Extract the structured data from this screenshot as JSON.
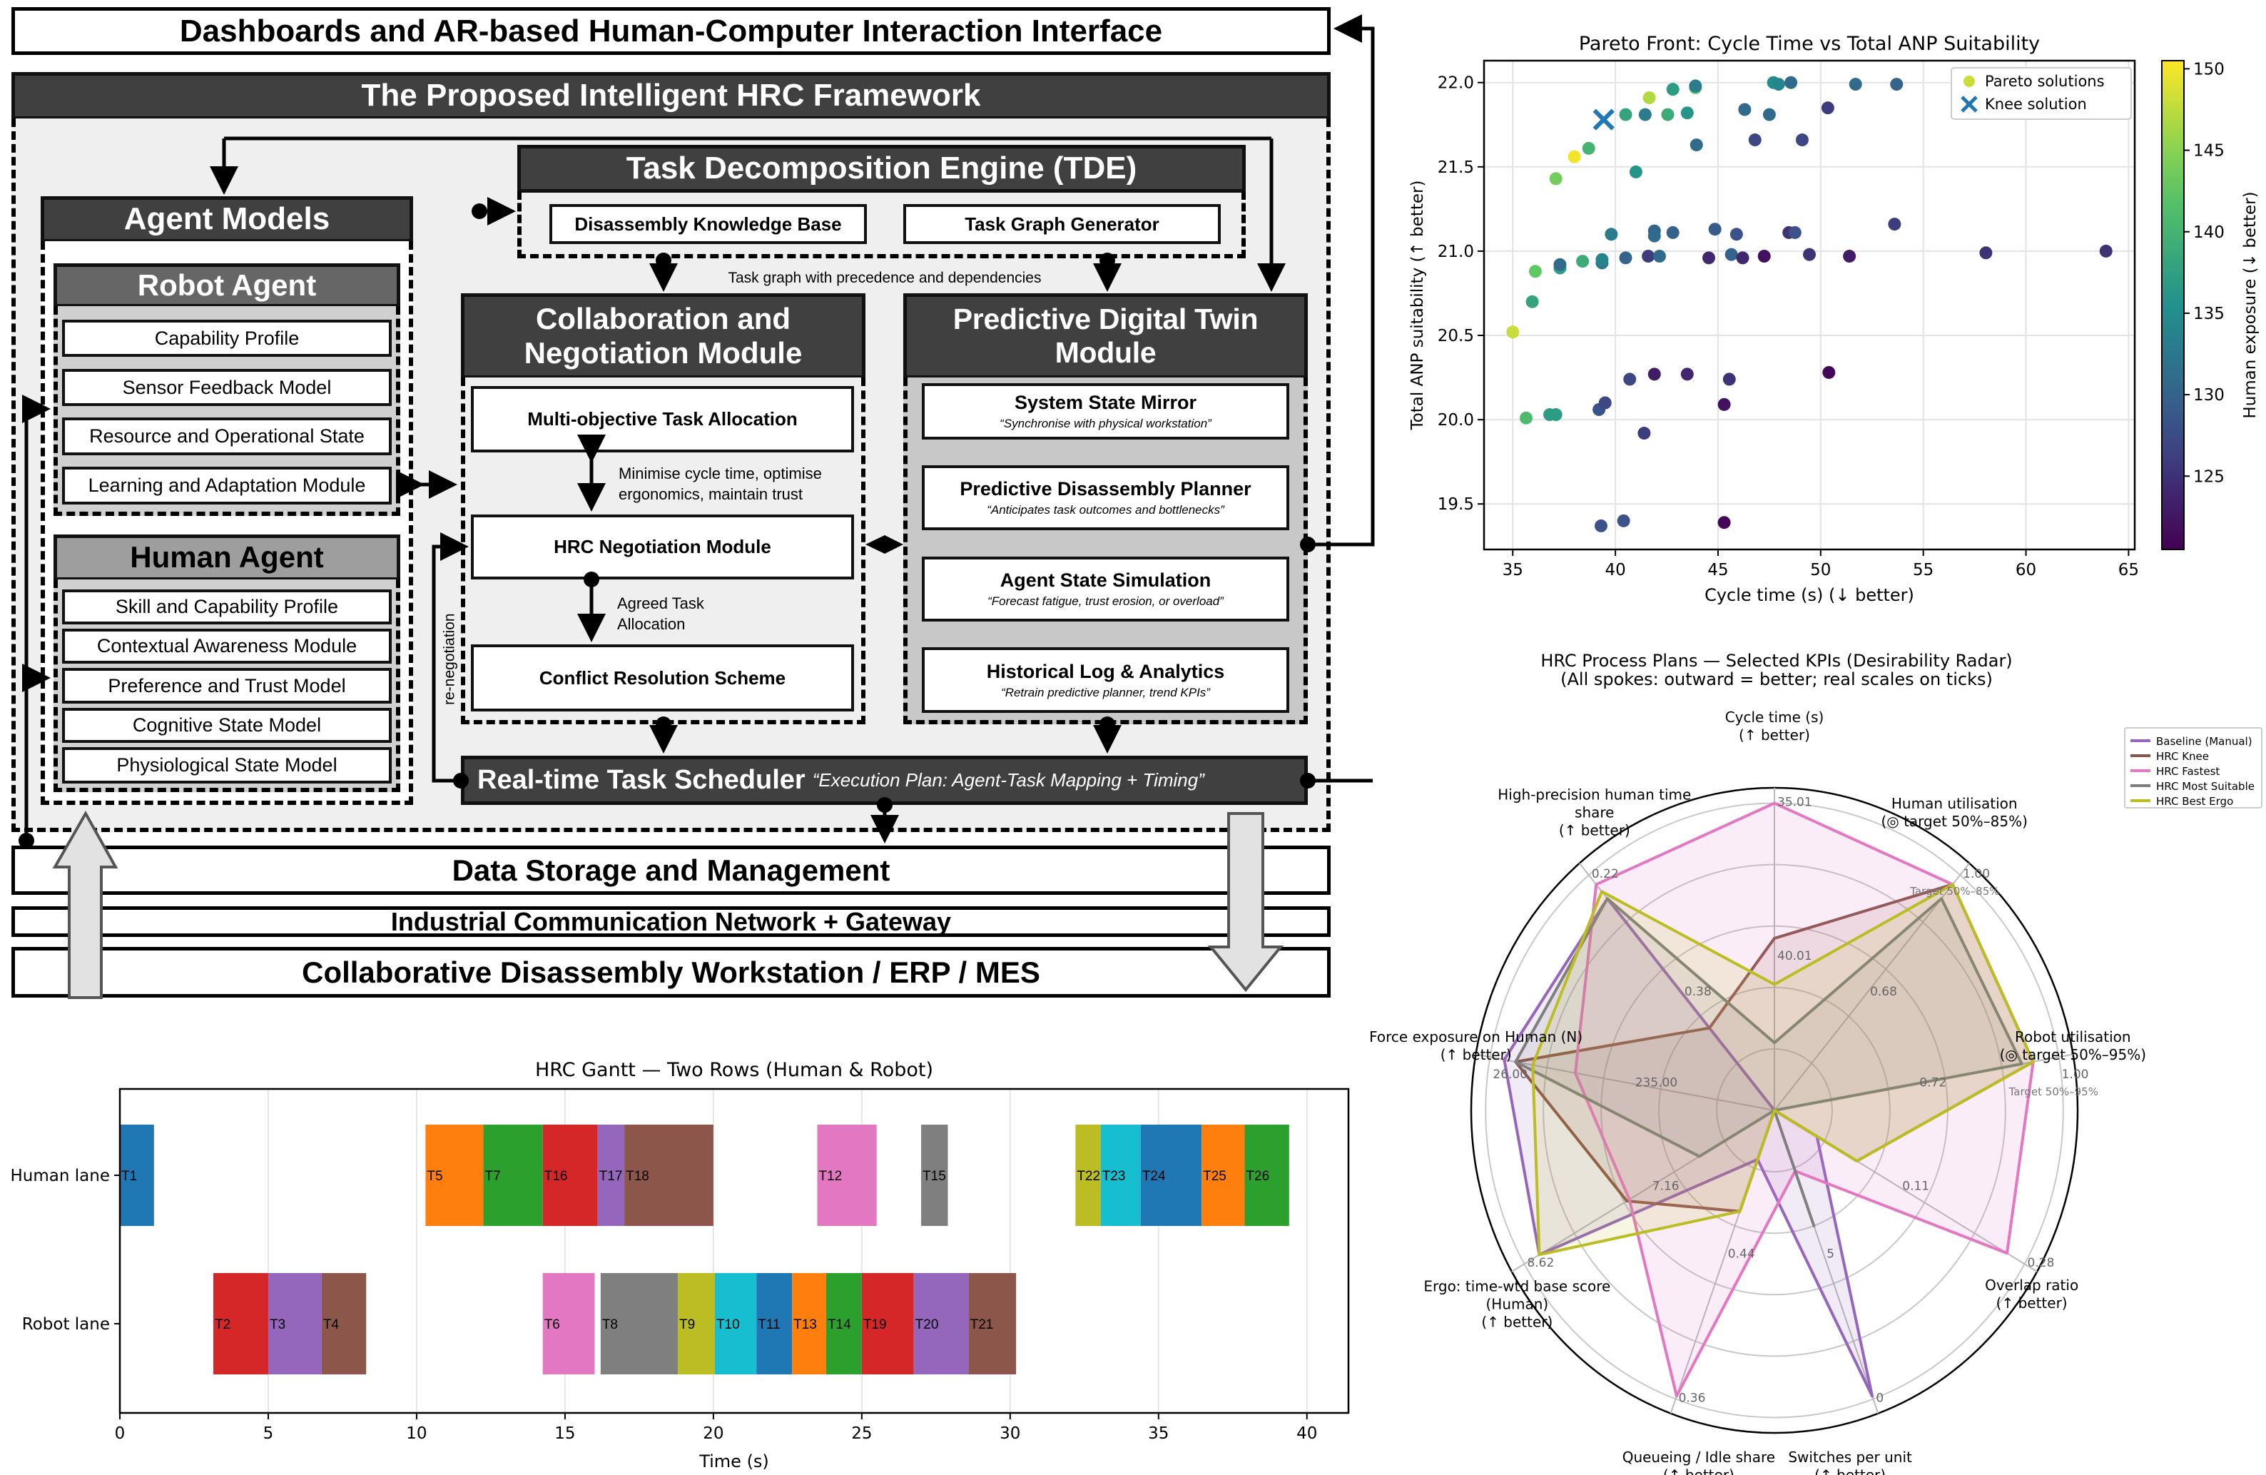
{
  "diagram": {
    "top_bar": "Dashboards and AR-based Human-Computer Interaction Interface",
    "framework_title": "The Proposed Intelligent HRC Framework",
    "tde": {
      "title": "Task Decomposition Engine (TDE)",
      "items": [
        "Disassembly Knowledge Base",
        "Task Graph Generator"
      ]
    },
    "task_graph_note": "Task graph with precedence and dependencies",
    "agent_models": {
      "title": "Agent Models",
      "robot": {
        "title": "Robot Agent",
        "items": [
          "Capability Profile",
          "Sensor Feedback Model",
          "Resource and Operational State",
          "Learning and Adaptation Module"
        ]
      },
      "human": {
        "title": "Human Agent",
        "items": [
          "Skill and Capability Profile",
          "Contextual Awareness Module",
          "Preference and Trust Model",
          "Cognitive State Model",
          "Physiological State Model"
        ]
      }
    },
    "collab": {
      "title_line1": "Collaboration and",
      "title_line2": "Negotiation Module",
      "items": [
        "Multi-objective Task Allocation",
        "HRC Negotiation Module",
        "Conflict Resolution Scheme"
      ],
      "note1_line1": "Minimise cycle time, optimise",
      "note1_line2": "ergonomics, maintain trust",
      "note2_line1": "Agreed Task",
      "note2_line2": "Allocation"
    },
    "renegotiation": "re-negotiation",
    "pdt": {
      "title_line1": "Predictive Digital Twin",
      "title_line2": "Module",
      "items": [
        {
          "title": "System State Mirror",
          "quote": "“Synchronise with physical workstation”"
        },
        {
          "title": "Predictive Disassembly Planner",
          "quote": "“Anticipates task outcomes and bottlenecks”"
        },
        {
          "title": "Agent State Simulation",
          "quote": "“Forecast fatigue, trust erosion, or overload”"
        },
        {
          "title": "Historical Log & Analytics",
          "quote": "“Retrain predictive planner, trend KPIs”"
        }
      ]
    },
    "scheduler": {
      "title": "Real-time Task Scheduler",
      "quote": "“Execution Plan: Agent-Task Mapping + Timing”"
    },
    "data_storage": "Data Storage and Management",
    "network": "Industrial Communication Network + Gateway",
    "workstation": "Collaborative Disassembly Workstation / ERP / MES"
  },
  "chart_data": [
    {
      "type": "scatter",
      "title": "Pareto Front: Cycle Time vs Total ANP Suitability",
      "xlabel": "Cycle time (s) (↓ better)",
      "ylabel": "Total ANP suitability (↑ better)",
      "xlim": [
        33.6,
        65.3
      ],
      "ylim": [
        19.23,
        22.13
      ],
      "xticks": [
        "35",
        "40",
        "45",
        "50",
        "55",
        "60",
        "65"
      ],
      "yticks": [
        "19.5",
        "20.0",
        "20.5",
        "21.0",
        "21.5",
        "22.0"
      ],
      "grid": true,
      "legend": {
        "placement": "top-right",
        "entries": [
          "Pareto solutions",
          "Knee solution"
        ]
      },
      "colorbar": {
        "label": "Human exposure (↓ better)",
        "range": [
          120.5,
          150.5
        ],
        "ticks": [
          "125",
          "130",
          "135",
          "140",
          "145",
          "150"
        ],
        "colormap": "viridis"
      },
      "knee": {
        "x": 39.43,
        "y": 21.78,
        "color": "#1f77b4"
      },
      "points": [
        [
          35.0,
          20.52,
          148
        ],
        [
          35.65,
          20.01,
          141
        ],
        [
          35.95,
          20.7,
          138
        ],
        [
          36.1,
          20.88,
          143
        ],
        [
          36.8,
          20.03,
          137
        ],
        [
          37.1,
          20.03,
          137
        ],
        [
          37.1,
          21.43,
          144
        ],
        [
          37.3,
          20.9,
          137
        ],
        [
          37.3,
          20.92,
          131
        ],
        [
          38.0,
          21.56,
          150
        ],
        [
          38.4,
          20.94,
          139
        ],
        [
          38.7,
          21.61,
          140
        ],
        [
          39.2,
          20.06,
          128
        ],
        [
          39.3,
          19.37,
          128
        ],
        [
          39.35,
          20.93,
          133
        ],
        [
          39.35,
          20.95,
          134
        ],
        [
          39.5,
          20.1,
          127
        ],
        [
          39.8,
          21.1,
          133
        ],
        [
          40.4,
          19.4,
          128
        ],
        [
          40.5,
          20.96,
          130
        ],
        [
          40.5,
          21.81,
          138
        ],
        [
          40.7,
          20.24,
          127
        ],
        [
          41.0,
          21.47,
          136
        ],
        [
          41.4,
          19.92,
          126
        ],
        [
          41.45,
          21.81,
          133
        ],
        [
          41.6,
          20.97,
          126
        ],
        [
          41.65,
          21.91,
          147
        ],
        [
          41.9,
          20.27,
          123
        ],
        [
          41.9,
          21.12,
          130
        ],
        [
          41.9,
          21.09,
          131
        ],
        [
          42.15,
          20.97,
          131
        ],
        [
          42.55,
          21.81,
          139
        ],
        [
          42.8,
          21.11,
          130
        ],
        [
          42.8,
          21.96,
          137
        ],
        [
          43.5,
          20.27,
          124
        ],
        [
          43.5,
          21.82,
          136
        ],
        [
          43.9,
          21.97,
          141
        ],
        [
          43.9,
          21.98,
          133
        ],
        [
          43.95,
          21.63,
          131
        ],
        [
          44.55,
          20.96,
          124
        ],
        [
          44.85,
          21.13,
          129
        ],
        [
          45.3,
          19.39,
          121
        ],
        [
          45.3,
          20.09,
          122
        ],
        [
          45.55,
          20.24,
          125
        ],
        [
          45.65,
          20.98,
          130
        ],
        [
          45.9,
          21.1,
          128
        ],
        [
          46.2,
          20.96,
          124
        ],
        [
          46.3,
          21.84,
          131
        ],
        [
          46.8,
          21.66,
          127
        ],
        [
          47.25,
          20.97,
          122
        ],
        [
          47.5,
          21.81,
          131
        ],
        [
          47.7,
          22.0,
          135
        ],
        [
          47.95,
          21.99,
          134
        ],
        [
          48.45,
          21.11,
          125
        ],
        [
          48.75,
          21.11,
          128
        ],
        [
          48.55,
          22.0,
          131
        ],
        [
          49.1,
          21.66,
          127
        ],
        [
          49.45,
          20.98,
          125
        ],
        [
          50.35,
          21.85,
          126
        ],
        [
          50.4,
          20.28,
          121
        ],
        [
          51.4,
          20.97,
          123
        ],
        [
          51.7,
          21.99,
          131
        ],
        [
          53.6,
          21.16,
          126
        ],
        [
          53.7,
          21.99,
          130
        ],
        [
          58.05,
          20.99,
          125
        ],
        [
          63.9,
          21.0,
          125
        ]
      ]
    },
    {
      "type": "bar",
      "subtype": "gantt",
      "title": "HRC Gantt — Two Rows (Human & Robot)",
      "xlabel": "Time (s)",
      "xlim": [
        0,
        41.4
      ],
      "xticks": [
        "0",
        "5",
        "10",
        "15",
        "20",
        "25",
        "30",
        "35",
        "40"
      ],
      "lanes": [
        "Human lane",
        "Robot lane"
      ],
      "tasks": [
        {
          "id": "T1",
          "lane": 0,
          "start": 0,
          "end": 1.15,
          "color": "#1f77b4"
        },
        {
          "id": "T5",
          "lane": 0,
          "start": 10.3,
          "end": 12.25,
          "color": "#ff7f0e"
        },
        {
          "id": "T7",
          "lane": 0,
          "start": 12.25,
          "end": 14.25,
          "color": "#2ca02c"
        },
        {
          "id": "T16",
          "lane": 0,
          "start": 14.25,
          "end": 16.1,
          "color": "#d62728"
        },
        {
          "id": "T17",
          "lane": 0,
          "start": 16.1,
          "end": 17.0,
          "color": "#9467bd"
        },
        {
          "id": "T18",
          "lane": 0,
          "start": 17.0,
          "end": 20.0,
          "color": "#8c564b"
        },
        {
          "id": "T12",
          "lane": 0,
          "start": 23.5,
          "end": 25.5,
          "color": "#e377c2"
        },
        {
          "id": "T15",
          "lane": 0,
          "start": 27.0,
          "end": 27.9,
          "color": "#7f7f7f"
        },
        {
          "id": "T22",
          "lane": 0,
          "start": 32.2,
          "end": 33.05,
          "color": "#bcbd22"
        },
        {
          "id": "T23",
          "lane": 0,
          "start": 33.05,
          "end": 34.4,
          "color": "#17becf"
        },
        {
          "id": "T24",
          "lane": 0,
          "start": 34.4,
          "end": 36.45,
          "color": "#1f77b4"
        },
        {
          "id": "T25",
          "lane": 0,
          "start": 36.45,
          "end": 37.9,
          "color": "#ff7f0e"
        },
        {
          "id": "T26",
          "lane": 0,
          "start": 37.9,
          "end": 39.4,
          "color": "#2ca02c"
        },
        {
          "id": "T2",
          "lane": 1,
          "start": 3.15,
          "end": 5.0,
          "color": "#d62728"
        },
        {
          "id": "T3",
          "lane": 1,
          "start": 5.0,
          "end": 6.8,
          "color": "#9467bd"
        },
        {
          "id": "T4",
          "lane": 1,
          "start": 6.8,
          "end": 8.3,
          "color": "#8c564b"
        },
        {
          "id": "T6",
          "lane": 1,
          "start": 14.25,
          "end": 16.0,
          "color": "#e377c2"
        },
        {
          "id": "T8",
          "lane": 1,
          "start": 16.2,
          "end": 18.8,
          "color": "#7f7f7f"
        },
        {
          "id": "T9",
          "lane": 1,
          "start": 18.8,
          "end": 20.05,
          "color": "#bcbd22"
        },
        {
          "id": "T10",
          "lane": 1,
          "start": 20.05,
          "end": 21.45,
          "color": "#17becf"
        },
        {
          "id": "T11",
          "lane": 1,
          "start": 21.45,
          "end": 22.65,
          "color": "#1f77b4"
        },
        {
          "id": "T13",
          "lane": 1,
          "start": 22.65,
          "end": 23.8,
          "color": "#ff7f0e"
        },
        {
          "id": "T14",
          "lane": 1,
          "start": 23.8,
          "end": 25.0,
          "color": "#2ca02c"
        },
        {
          "id": "T19",
          "lane": 1,
          "start": 25.0,
          "end": 26.75,
          "color": "#d62728"
        },
        {
          "id": "T20",
          "lane": 1,
          "start": 26.75,
          "end": 28.6,
          "color": "#9467bd"
        },
        {
          "id": "T21",
          "lane": 1,
          "start": 28.6,
          "end": 30.2,
          "color": "#8c564b"
        }
      ]
    },
    {
      "type": "radar",
      "title": "HRC Process Plans — Selected KPIs (Desirability Radar)",
      "subtitle": "(All spokes: outward = better; real scales on ticks)",
      "rlim": [
        0,
        1.05
      ],
      "legend": {
        "placement": "top-right"
      },
      "axes": [
        {
          "label": [
            "Cycle time (s)",
            "(↑ better)"
          ],
          "ticks": [
            "35.01",
            "40.01"
          ]
        },
        {
          "label": [
            "Human utilisation",
            "(◎ target 50%–85%)"
          ],
          "ticks": [
            "1.00",
            "0.68"
          ],
          "target": "Target 50%–85%"
        },
        {
          "label": [
            "Robot utilisation",
            "(◎ target 50%–95%)"
          ],
          "ticks": [
            "1.00",
            "0.72"
          ],
          "target": "Target 50%–95%"
        },
        {
          "label": [
            "Overlap ratio",
            "(↑ better)"
          ],
          "ticks": [
            "0.28",
            "0.11"
          ]
        },
        {
          "label": [
            "Switches per unit",
            "(↑ better)"
          ],
          "ticks": [
            "0",
            "5"
          ]
        },
        {
          "label": [
            "Queueing / Idle share",
            "(↑ better)"
          ],
          "ticks": [
            "0.36",
            "0.44"
          ]
        },
        {
          "label": [
            "Ergo: time-wtd base score",
            "(Human)",
            "(↑ better)"
          ],
          "ticks": [
            "8.62",
            "7.16"
          ]
        },
        {
          "label": [
            "Force exposure on Human (N)",
            "(↑ better)"
          ],
          "ticks": [
            "26.00",
            "235.00"
          ]
        },
        {
          "label": [
            "High-precision human time",
            "share",
            "(↑ better)"
          ],
          "ticks": [
            "0.22",
            "0.38"
          ]
        }
      ],
      "series": [
        {
          "name": "Baseline (Manual)",
          "color": "#9467bd",
          "values": [
            0,
            0,
            0,
            0.17,
            0.99,
            0.17,
            0.94,
            0.95,
            0.9
          ]
        },
        {
          "name": "HRC Knee",
          "color": "#8c564b",
          "values": [
            0.56,
            0.96,
            0.91,
            0.33,
            0,
            0.35,
            0.59,
            0.91,
            0.35
          ]
        },
        {
          "name": "HRC Fastest",
          "color": "#e377c2",
          "values": [
            1.0,
            0.96,
            0.91,
            0.93,
            0.21,
            0.99,
            0.58,
            0.7,
            0.96
          ]
        },
        {
          "name": "HRC Most Suitable",
          "color": "#7f7f7f",
          "values": [
            0.22,
            0.9,
            0.87,
            0,
            0.4,
            0,
            0.3,
            0.91,
            0.9
          ]
        },
        {
          "name": "HRC Best Ergo",
          "color": "#bcbd22",
          "values": [
            0.41,
            0.96,
            0.91,
            0.33,
            0,
            0.35,
            0.94,
            0.85,
            0.93
          ]
        }
      ]
    }
  ]
}
